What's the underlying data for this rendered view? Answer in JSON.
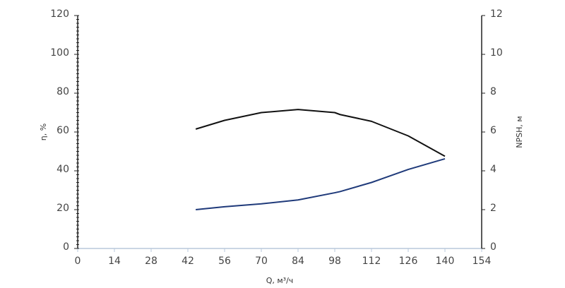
{
  "chart_data": {
    "type": "line",
    "x_label": "Q, м³/ч",
    "y_label": "η, %",
    "y2_label": "NPSH, м",
    "x": [
      45,
      56,
      70,
      84,
      98,
      100,
      112,
      126,
      140
    ],
    "series": [
      {
        "color": "#111111",
        "values": [
          61.5,
          66,
          70,
          71.6,
          70,
          69,
          65.5,
          58,
          47.5
        ]
      },
      {
        "color": "#1f3a7a",
        "axis": "y2",
        "values": [
          2.0,
          2.15,
          2.3,
          2.5,
          2.87,
          2.93,
          3.4,
          4.07,
          4.62
        ]
      }
    ],
    "xlim": [
      0,
      154
    ],
    "xticks": [
      0,
      14,
      28,
      42,
      56,
      70,
      84,
      98,
      112,
      126,
      140,
      154
    ],
    "ylim": [
      0,
      120
    ],
    "yticks": [
      0,
      20,
      40,
      60,
      80,
      100,
      120
    ],
    "y2lim": [
      0,
      12
    ],
    "y2ticks": [
      0,
      2,
      4,
      6,
      8,
      10,
      12
    ],
    "grid": false
  }
}
